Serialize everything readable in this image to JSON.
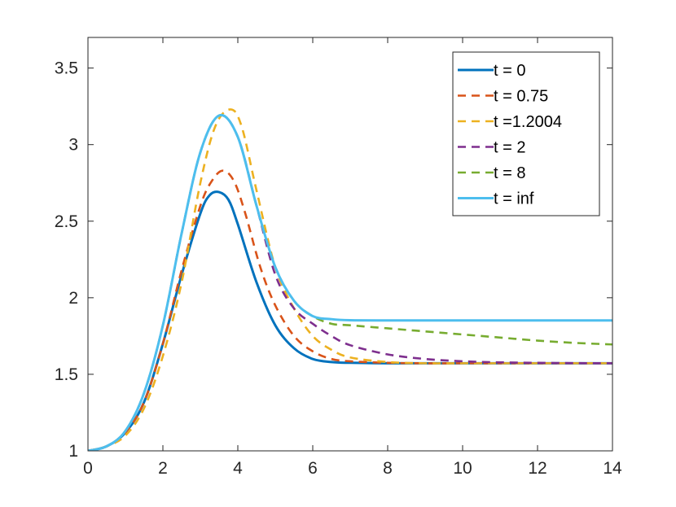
{
  "chart_data": {
    "type": "line",
    "title": "",
    "xlabel": "",
    "ylabel": "",
    "xlim": [
      0,
      14
    ],
    "ylim": [
      1,
      3.7
    ],
    "grid": false,
    "legend_position": "top-right",
    "x_ticks": [
      "0",
      "2",
      "4",
      "6",
      "8",
      "10",
      "12",
      "14"
    ],
    "y_ticks": [
      "1",
      "1.5",
      "2",
      "2.5",
      "3",
      "3.5"
    ],
    "series": [
      {
        "name": "t = 0",
        "color": "#0072BD",
        "style": "solid",
        "x": [
          0,
          0.5,
          1,
          1.5,
          2,
          2.5,
          3,
          3.25,
          3.5,
          3.75,
          4,
          4.5,
          5,
          5.5,
          6,
          6.5,
          7,
          8,
          9,
          10,
          12,
          14
        ],
        "y": [
          1,
          1.03,
          1.12,
          1.32,
          1.7,
          2.15,
          2.55,
          2.67,
          2.69,
          2.64,
          2.48,
          2.1,
          1.82,
          1.67,
          1.6,
          1.58,
          1.575,
          1.572,
          1.572,
          1.572,
          1.572,
          1.572
        ]
      },
      {
        "name": "t = 0.75",
        "color": "#D95319",
        "style": "dashed",
        "x": [
          0,
          0.5,
          1,
          1.5,
          2,
          2.5,
          3,
          3.3,
          3.6,
          3.9,
          4.2,
          4.6,
          5,
          5.5,
          6,
          6.5,
          7,
          8,
          9,
          10,
          12,
          14
        ],
        "y": [
          1,
          1.03,
          1.12,
          1.32,
          1.7,
          2.18,
          2.6,
          2.76,
          2.83,
          2.76,
          2.55,
          2.2,
          1.95,
          1.75,
          1.65,
          1.6,
          1.585,
          1.575,
          1.572,
          1.572,
          1.572,
          1.572
        ]
      },
      {
        "name": "t =1.2004",
        "color": "#EDB120",
        "style": "dashed",
        "x": [
          0,
          0.5,
          1,
          1.5,
          2,
          2.5,
          3,
          3.4,
          3.8,
          4.1,
          4.5,
          5,
          5.5,
          6,
          6.5,
          7,
          8,
          9,
          10,
          12,
          14
        ],
        "y": [
          1,
          1.03,
          1.1,
          1.28,
          1.62,
          2.1,
          2.75,
          3.12,
          3.23,
          3.12,
          2.7,
          2.2,
          1.93,
          1.75,
          1.66,
          1.61,
          1.58,
          1.572,
          1.572,
          1.572,
          1.572
        ]
      },
      {
        "name": "t = 2",
        "color": "#7E2F8E",
        "style": "dashed",
        "x": [
          0,
          0.5,
          1,
          1.5,
          2,
          2.5,
          3,
          3.5,
          4,
          4.5,
          5,
          5.5,
          6,
          6.5,
          7,
          8,
          9,
          10,
          11,
          12,
          13,
          14
        ],
        "y": [
          1,
          1.03,
          1.13,
          1.38,
          1.82,
          2.42,
          2.95,
          3.19,
          3.05,
          2.6,
          2.15,
          1.93,
          1.83,
          1.75,
          1.69,
          1.63,
          1.6,
          1.585,
          1.578,
          1.575,
          1.573,
          1.572
        ]
      },
      {
        "name": "t = 8",
        "color": "#77AC30",
        "style": "dashed",
        "x": [
          0,
          0.5,
          1,
          1.5,
          2,
          2.5,
          3,
          3.5,
          4,
          4.5,
          5,
          5.5,
          6,
          6.5,
          7,
          8,
          9,
          10,
          11,
          12,
          13,
          14
        ],
        "y": [
          1,
          1.03,
          1.13,
          1.38,
          1.82,
          2.42,
          2.95,
          3.19,
          3.05,
          2.6,
          2.2,
          1.98,
          1.88,
          1.83,
          1.82,
          1.8,
          1.78,
          1.76,
          1.74,
          1.72,
          1.705,
          1.695
        ]
      },
      {
        "name": "t = inf",
        "color": "#4DBEEE",
        "style": "solid",
        "x": [
          0,
          0.5,
          1,
          1.5,
          2,
          2.5,
          3,
          3.5,
          4,
          4.5,
          5,
          5.5,
          6,
          6.5,
          7,
          8,
          9,
          10,
          12,
          14
        ],
        "y": [
          1,
          1.03,
          1.13,
          1.38,
          1.82,
          2.42,
          2.95,
          3.19,
          3.05,
          2.6,
          2.2,
          1.98,
          1.88,
          1.86,
          1.853,
          1.852,
          1.852,
          1.852,
          1.852,
          1.852
        ]
      }
    ]
  }
}
